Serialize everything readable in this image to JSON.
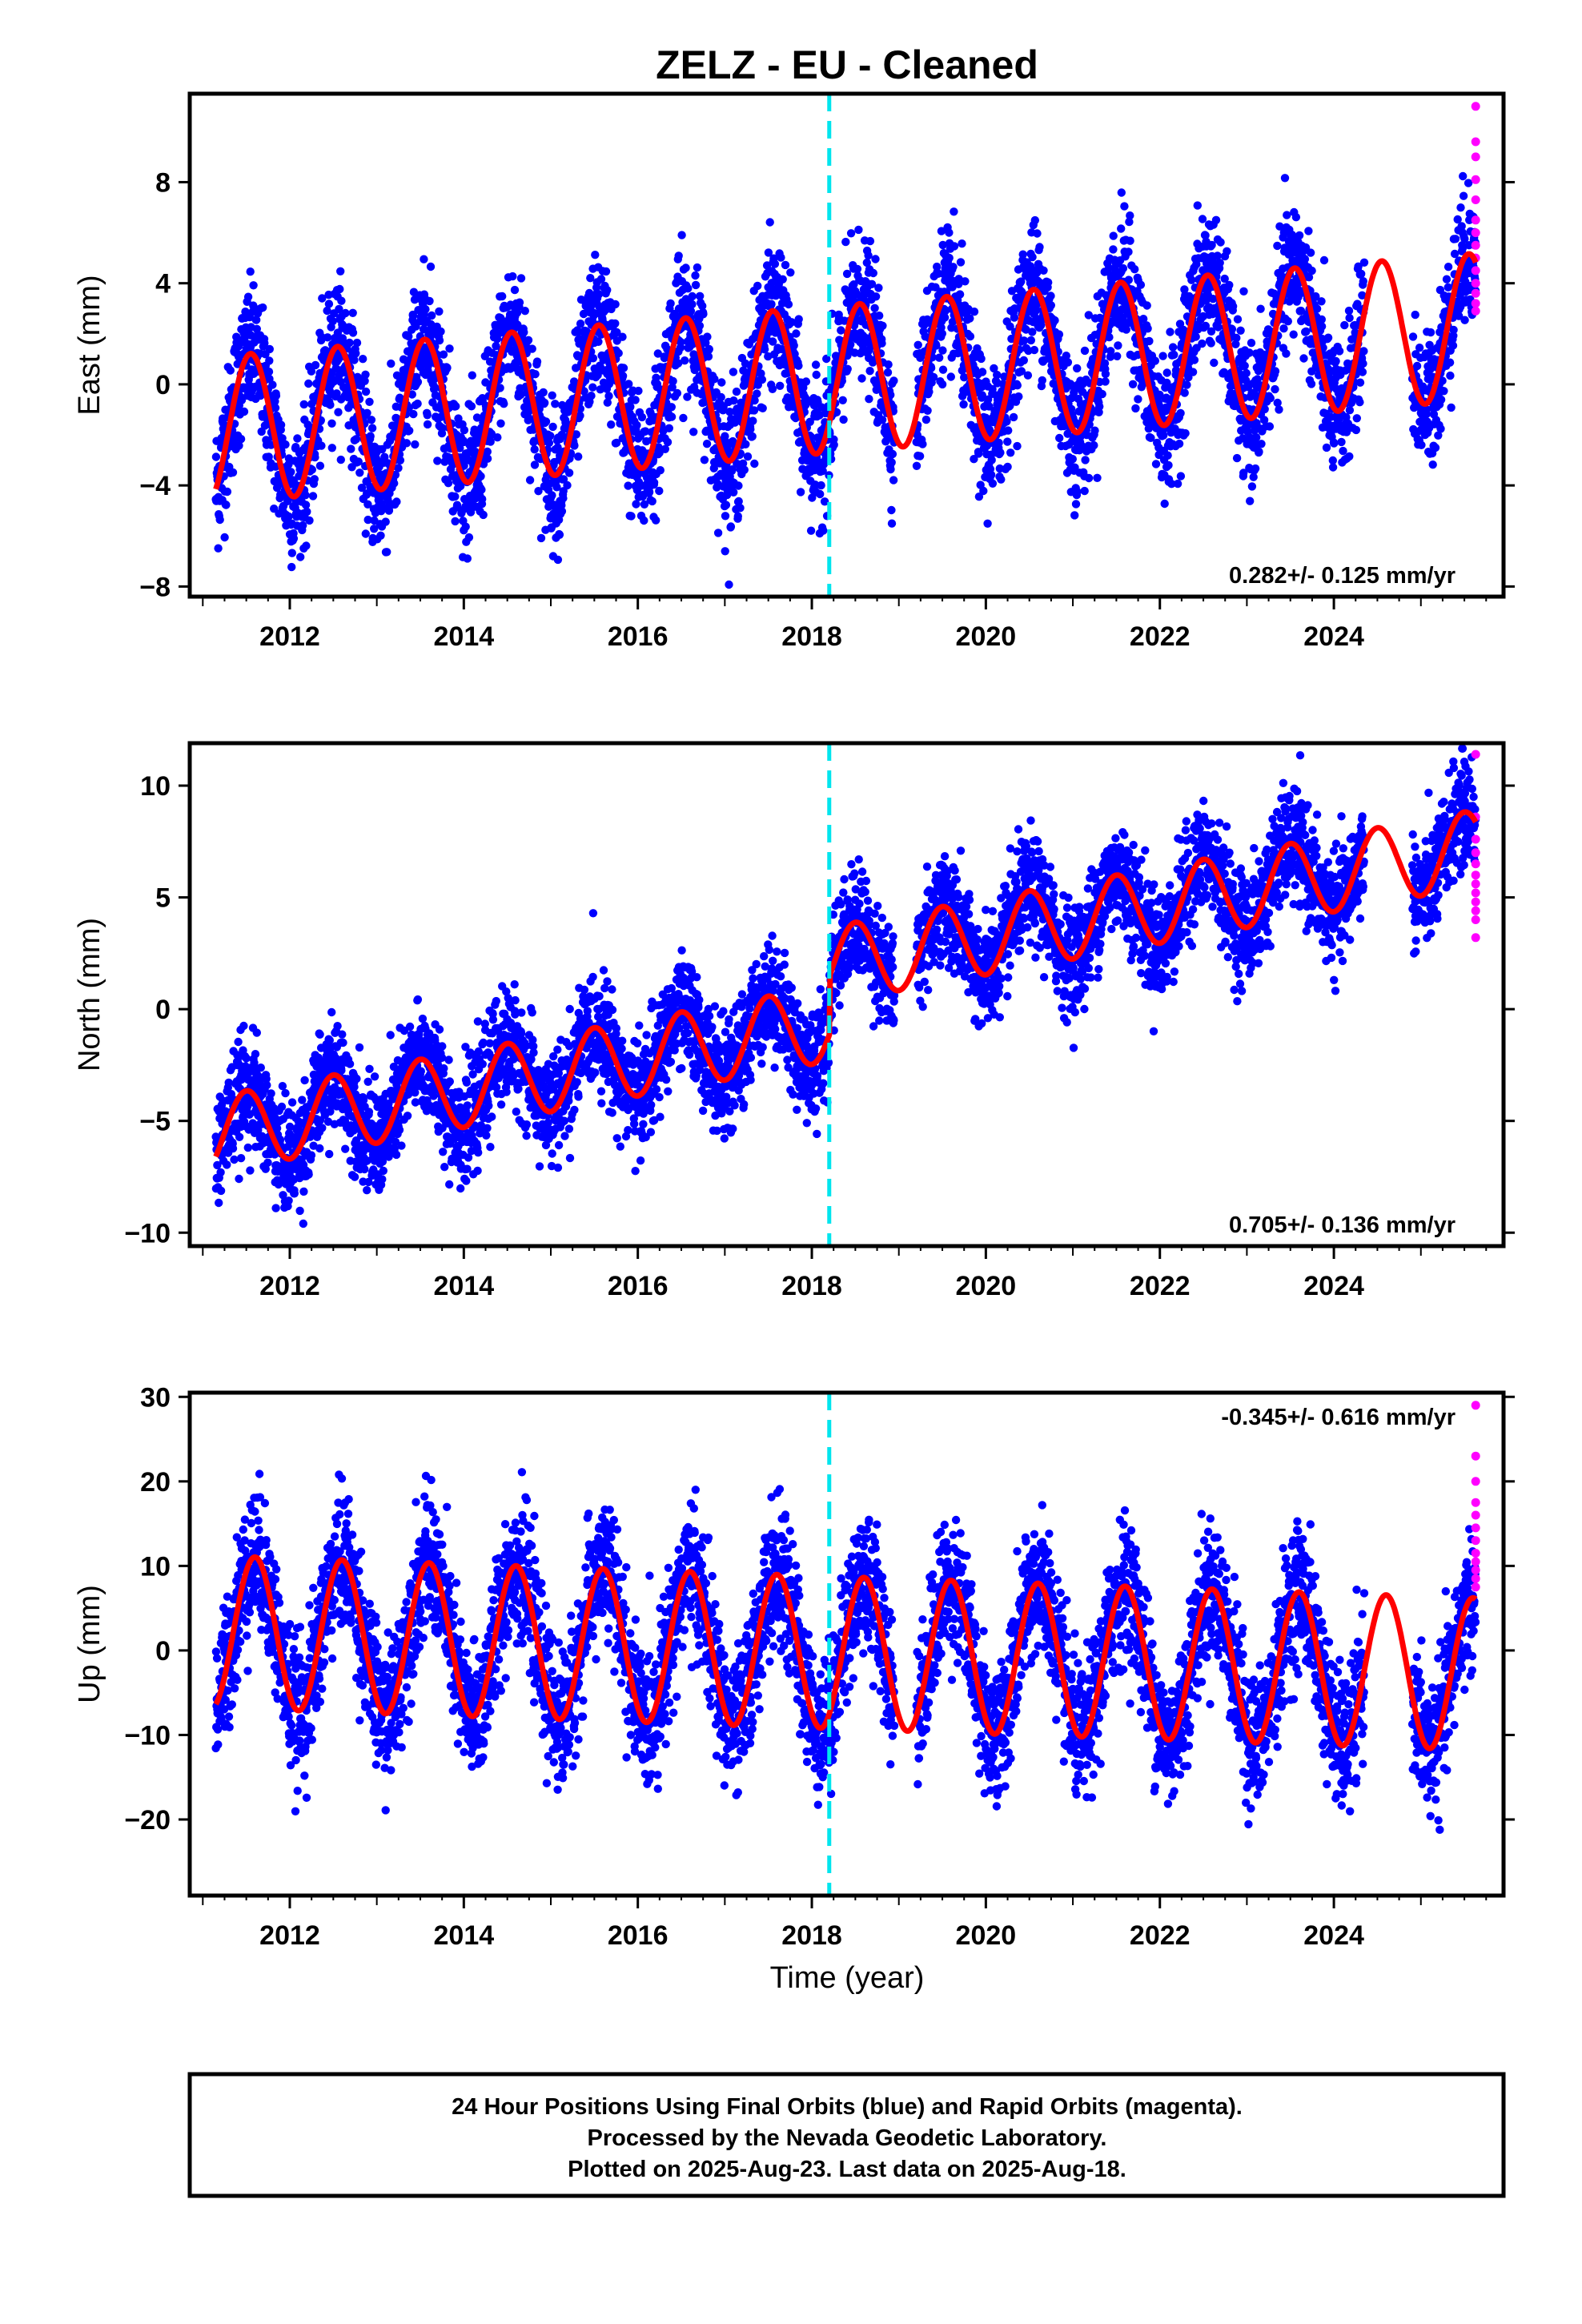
{
  "title": "ZELZ  - EU - Cleaned",
  "x_axis_label": "Time (year)",
  "footer": {
    "line1": "24 Hour Positions Using Final Orbits (blue) and Rapid Orbits (magenta).",
    "line2": "Processed by the Nevada Geodetic Laboratory.",
    "line3": "Plotted on 2025-Aug-23. Last data on 2025-Aug-18."
  },
  "colors": {
    "final_orbits": "#0000ff",
    "rapid_orbits": "#ff00ff",
    "model": "#ff0000",
    "equipment_change": "#00e5ee"
  },
  "chart_data": [
    {
      "type": "scatter",
      "panel": "east",
      "ylabel": "East (mm)",
      "xlim": [
        2010.85,
        2025.95
      ],
      "ylim": [
        -8.4,
        11.5
      ],
      "yticks": [
        -8,
        -4,
        0,
        4,
        8
      ],
      "xticks": [
        2012,
        2014,
        2016,
        2018,
        2020,
        2022,
        2024
      ],
      "rate_label": "0.282+/- 0.125 mm/yr",
      "rate_position": "bottom-right",
      "start": 2011.15,
      "end": 2025.63,
      "trend_mm_per_yr": 0.282,
      "offset_at_start_mm": -1.8,
      "seasonal_amplitude_mm": 2.9,
      "seasonal_peak": 0.55,
      "scatter_sd_mm": 1.3,
      "break_epoch": 2018.2,
      "break_offset_mm": 0,
      "gaps": [
        [
          2018.95,
          2019.2
        ],
        [
          2024.35,
          2024.9
        ]
      ],
      "rapid_values": [
        11.0,
        9.6,
        9.0,
        8.1,
        7.3,
        6.5,
        6.0,
        5.5,
        5.0,
        4.5,
        4.0,
        3.6,
        3.2,
        2.9
      ]
    },
    {
      "type": "scatter",
      "panel": "north",
      "ylabel": "North (mm)",
      "xlim": [
        2010.85,
        2025.95
      ],
      "ylim": [
        -10.6,
        11.9
      ],
      "yticks": [
        -10,
        -5,
        0,
        5,
        10
      ],
      "xticks": [
        2012,
        2014,
        2016,
        2018,
        2020,
        2022,
        2024
      ],
      "rate_label": "0.705+/- 0.136 mm/yr",
      "rate_position": "bottom-right",
      "start": 2011.15,
      "end": 2025.63,
      "trend_mm_per_yr": 0.705,
      "offset_at_start_mm": -5.6,
      "seasonal_amplitude_mm": 1.7,
      "seasonal_peak": 0.5,
      "scatter_sd_mm": 1.2,
      "break_epoch": 2018.2,
      "break_offset_mm": 2.6,
      "gaps": [
        [
          2018.95,
          2019.2
        ],
        [
          2024.35,
          2024.9
        ]
      ],
      "rapid_values": [
        11.4,
        8.6,
        7.6,
        7.0,
        6.5,
        6.0,
        5.6,
        5.2,
        4.8,
        4.4,
        4.0,
        3.2
      ]
    },
    {
      "type": "scatter",
      "panel": "up",
      "ylabel": "Up (mm)",
      "xlim": [
        2010.85,
        2025.95
      ],
      "ylim": [
        -29,
        30.5
      ],
      "yticks": [
        -20,
        -10,
        0,
        10,
        20,
        30
      ],
      "xticks": [
        2012,
        2014,
        2016,
        2018,
        2020,
        2022,
        2024
      ],
      "rate_label": "-0.345+/- 0.616 mm/yr",
      "rate_position": "top-right",
      "start": 2011.15,
      "end": 2025.63,
      "trend_mm_per_yr": -0.345,
      "offset_at_start_mm": 2.2,
      "seasonal_amplitude_mm": 9.0,
      "seasonal_peak": 0.6,
      "scatter_sd_mm": 4.0,
      "break_epoch": 2018.2,
      "break_offset_mm": 0,
      "gaps": [
        [
          2018.95,
          2019.2
        ],
        [
          2024.35,
          2024.9
        ]
      ],
      "rapid_values": [
        29.0,
        23.0,
        20.0,
        17.5,
        16.0,
        14.5,
        13.0,
        11.5,
        10.5,
        9.5,
        8.5,
        7.5
      ]
    }
  ]
}
